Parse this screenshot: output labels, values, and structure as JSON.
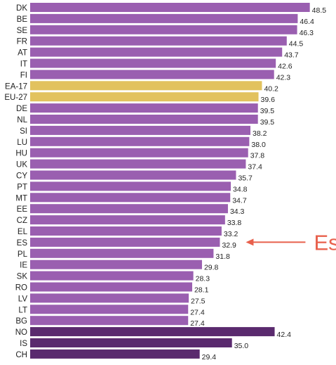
{
  "chart_data": {
    "type": "bar",
    "orientation": "horizontal",
    "categories": [
      "DK",
      "BE",
      "SE",
      "FR",
      "AT",
      "IT",
      "FI",
      "EA-17",
      "EU-27",
      "DE",
      "NL",
      "SI",
      "LU",
      "HU",
      "UK",
      "CY",
      "PT",
      "MT",
      "EE",
      "CZ",
      "EL",
      "ES",
      "PL",
      "IE",
      "SK",
      "RO",
      "LV",
      "LT",
      "BG",
      "NO",
      "IS",
      "CH"
    ],
    "values": [
      48.5,
      46.4,
      46.3,
      44.5,
      43.7,
      42.6,
      42.3,
      40.2,
      39.6,
      39.5,
      39.5,
      38.2,
      38.0,
      37.8,
      37.4,
      35.7,
      34.8,
      34.7,
      34.3,
      33.8,
      33.2,
      32.9,
      31.8,
      29.8,
      28.3,
      28.1,
      27.5,
      27.4,
      27.4,
      42.4,
      35.0,
      29.4
    ],
    "value_labels": [
      "48.5",
      "46.4",
      "46.3",
      "44.5",
      "43.7",
      "42.6",
      "42.3",
      "40.2",
      "39.6",
      "39.5",
      "39.5",
      "38.2",
      "38.0",
      "37.8",
      "37.4",
      "35.7",
      "34.8",
      "34.7",
      "34.3",
      "33.8",
      "33.2",
      "32.9",
      "31.8",
      "29.8",
      "28.3",
      "28.1",
      "27.5",
      "27.4",
      "27.4",
      "42.4",
      "35.0",
      "29.4"
    ],
    "groups": [
      "member",
      "member",
      "member",
      "member",
      "member",
      "member",
      "member",
      "aggregate",
      "aggregate",
      "member",
      "member",
      "member",
      "member",
      "member",
      "member",
      "member",
      "member",
      "member",
      "member",
      "member",
      "member",
      "member",
      "member",
      "member",
      "member",
      "member",
      "member",
      "member",
      "member",
      "non_eu",
      "non_eu",
      "non_eu"
    ],
    "colors": {
      "member": "#9a5fb0",
      "aggregate": "#e2c25e",
      "non_eu": "#5a2a6e",
      "annotation": "#e8604c"
    },
    "xlim": [
      0,
      50
    ],
    "grid": false,
    "title": "",
    "xlabel": "",
    "ylabel": "",
    "annotation": {
      "text": "España",
      "target": "ES"
    }
  }
}
